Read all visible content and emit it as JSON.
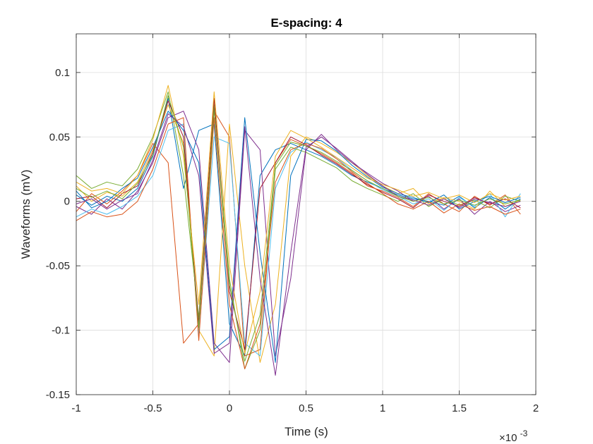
{
  "chart_data": {
    "type": "line",
    "title": "E-spacing: 4",
    "xlabel": "Time (s)",
    "ylabel": "Waveforms (mV)",
    "x_exponent_label": "×10",
    "x_exponent_power": "-3",
    "xlim": [
      -1,
      2
    ],
    "ylim": [
      -0.15,
      0.13
    ],
    "grid": true,
    "xticks": [
      -1,
      -0.5,
      0,
      0.5,
      1,
      1.5,
      2
    ],
    "xtick_labels": [
      "-1",
      "-0.5",
      "0",
      "0.5",
      "1",
      "1.5",
      "2"
    ],
    "yticks": [
      -0.15,
      -0.1,
      -0.05,
      0,
      0.05,
      0.1
    ],
    "ytick_labels": [
      "-0.15",
      "-0.1",
      "-0.05",
      "0",
      "0.05",
      "0.1"
    ],
    "colors": [
      "#0072BD",
      "#D95319",
      "#EDB120",
      "#7E2F8E",
      "#77AC30",
      "#4DBEEE",
      "#A2142F"
    ],
    "x": [
      -1.0,
      -0.9,
      -0.8,
      -0.7,
      -0.6,
      -0.5,
      -0.4,
      -0.3,
      -0.2,
      -0.1,
      0.0,
      0.1,
      0.2,
      0.3,
      0.4,
      0.5,
      0.6,
      0.7,
      0.8,
      0.9,
      1.0,
      1.1,
      1.2,
      1.3,
      1.4,
      1.5,
      1.6,
      1.7,
      1.8,
      1.9
    ],
    "series": [
      {
        "values": [
          0.005,
          -0.003,
          0.004,
          0.0,
          0.01,
          0.035,
          0.08,
          0.01,
          0.055,
          0.06,
          -0.095,
          -0.12,
          0.02,
          0.04,
          0.045,
          0.04,
          0.035,
          0.028,
          0.02,
          0.015,
          0.01,
          0.005,
          0.002,
          0.0,
          -0.003,
          0.004,
          -0.005,
          0.003,
          -0.006,
          0.002
        ]
      },
      {
        "values": [
          -0.008,
          0.006,
          -0.002,
          0.008,
          0.02,
          0.045,
          0.03,
          -0.11,
          -0.095,
          0.07,
          0.05,
          -0.12,
          -0.115,
          0.03,
          0.048,
          0.043,
          0.037,
          0.03,
          0.022,
          0.012,
          0.008,
          0.003,
          -0.004,
          0.006,
          -0.002,
          -0.008,
          0.004,
          -0.003,
          0.005,
          -0.01
        ]
      },
      {
        "values": [
          0.012,
          0.0,
          0.007,
          0.004,
          0.015,
          0.04,
          0.075,
          0.045,
          -0.1,
          -0.12,
          0.06,
          -0.05,
          -0.125,
          -0.08,
          0.035,
          0.05,
          0.045,
          0.038,
          0.03,
          0.02,
          0.012,
          0.006,
          0.01,
          -0.002,
          0.003,
          0.0,
          -0.006,
          0.008,
          -0.004,
          0.001
        ]
      },
      {
        "values": [
          -0.004,
          -0.01,
          0.002,
          -0.006,
          0.008,
          0.03,
          0.065,
          0.07,
          0.04,
          -0.11,
          -0.125,
          0.055,
          0.04,
          -0.12,
          -0.06,
          0.04,
          0.052,
          0.04,
          0.03,
          0.022,
          0.014,
          0.008,
          0.0,
          0.004,
          -0.006,
          0.002,
          -0.01,
          0.0,
          -0.008,
          -0.003
        ]
      },
      {
        "values": [
          0.02,
          0.01,
          0.015,
          0.012,
          0.025,
          0.05,
          0.085,
          0.02,
          -0.09,
          0.075,
          -0.06,
          -0.13,
          -0.1,
          0.025,
          0.042,
          0.038,
          0.032,
          0.026,
          0.016,
          0.01,
          0.005,
          0.0,
          0.006,
          -0.004,
          0.002,
          -0.003,
          0.001,
          -0.005,
          0.004,
          0.0
        ]
      },
      {
        "values": [
          -0.012,
          -0.006,
          -0.01,
          -0.004,
          0.004,
          0.02,
          0.055,
          0.06,
          -0.105,
          0.05,
          0.045,
          -0.11,
          -0.12,
          0.01,
          0.038,
          0.046,
          0.04,
          0.034,
          0.024,
          0.016,
          0.009,
          0.004,
          -0.002,
          0.002,
          -0.007,
          0.003,
          -0.004,
          0.006,
          -0.012,
          0.006
        ]
      },
      {
        "values": [
          0.002,
          0.004,
          -0.005,
          0.006,
          0.012,
          0.038,
          0.078,
          0.05,
          -0.095,
          0.08,
          -0.07,
          -0.115,
          0.01,
          0.03,
          0.05,
          0.044,
          0.036,
          0.029,
          0.021,
          0.013,
          0.007,
          0.002,
          -0.005,
          0.005,
          0.0,
          -0.004,
          0.003,
          -0.002,
          0.002,
          -0.005
        ]
      },
      {
        "values": [
          0.008,
          -0.005,
          0.0,
          0.01,
          0.018,
          0.042,
          0.07,
          0.055,
          0.03,
          -0.115,
          -0.105,
          0.065,
          -0.04,
          -0.125,
          0.02,
          0.048,
          0.047,
          0.039,
          0.028,
          0.019,
          0.011,
          0.006,
          0.003,
          -0.001,
          0.005,
          -0.006,
          0.0,
          0.004,
          -0.001,
          0.003
        ]
      },
      {
        "values": [
          -0.015,
          -0.008,
          -0.012,
          -0.01,
          0.0,
          0.025,
          0.06,
          0.065,
          -0.108,
          0.065,
          -0.08,
          -0.13,
          -0.095,
          0.015,
          0.04,
          0.045,
          0.041,
          0.033,
          0.023,
          0.014,
          0.006,
          -0.002,
          -0.006,
          0.0,
          -0.009,
          -0.002,
          -0.007,
          -0.004,
          -0.01,
          -0.006
        ]
      },
      {
        "values": [
          0.015,
          0.008,
          0.01,
          0.006,
          0.02,
          0.048,
          0.09,
          0.035,
          -0.08,
          0.085,
          -0.05,
          -0.118,
          -0.07,
          0.035,
          0.055,
          0.049,
          0.042,
          0.034,
          0.026,
          0.018,
          0.013,
          0.009,
          0.004,
          0.007,
          0.002,
          0.005,
          -0.001,
          0.006,
          0.001,
          0.004
        ]
      },
      {
        "values": [
          -0.002,
          0.002,
          -0.006,
          0.001,
          0.006,
          0.032,
          0.068,
          0.058,
          0.02,
          -0.118,
          -0.11,
          0.058,
          -0.06,
          -0.135,
          -0.04,
          0.042,
          0.05,
          0.041,
          0.031,
          0.021,
          0.012,
          0.004,
          0.001,
          -0.003,
          0.002,
          -0.005,
          0.002,
          -0.001,
          -0.004,
          0.0
        ]
      },
      {
        "values": [
          0.01,
          0.003,
          0.008,
          0.002,
          0.014,
          0.036,
          0.082,
          0.042,
          -0.098,
          0.072,
          -0.065,
          -0.124,
          -0.088,
          0.028,
          0.046,
          0.043,
          0.038,
          0.031,
          0.024,
          0.016,
          0.01,
          0.004,
          0.0,
          0.003,
          -0.002,
          0.001,
          -0.003,
          0.002,
          -0.002,
          0.001
        ]
      }
    ]
  }
}
